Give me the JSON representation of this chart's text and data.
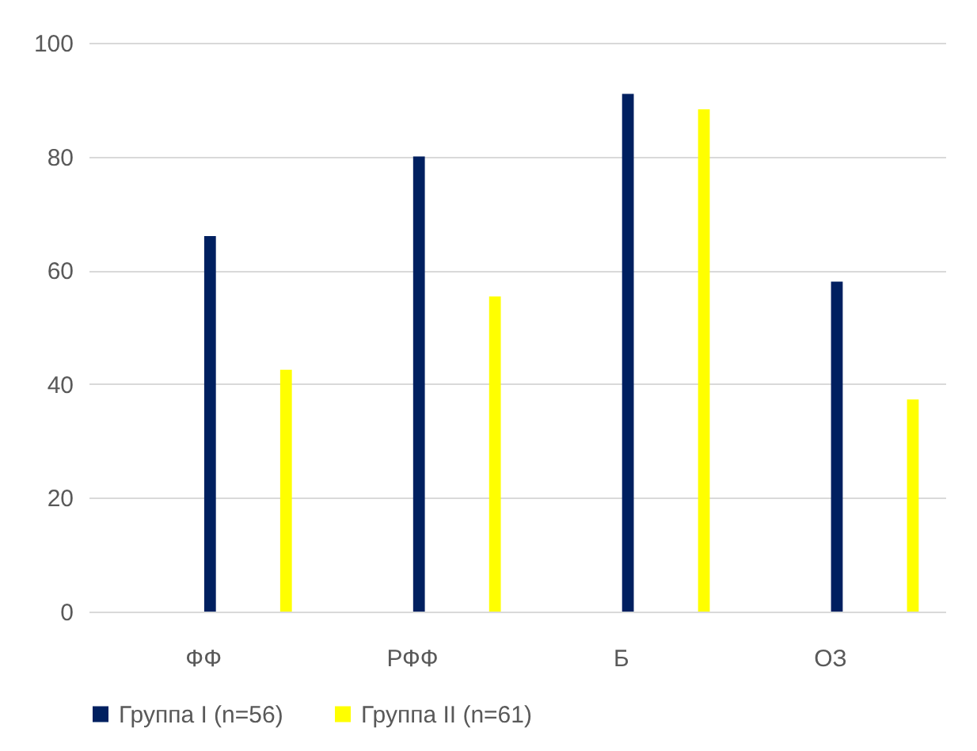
{
  "chart_data": {
    "type": "bar",
    "categories": [
      "ФФ",
      "РФФ",
      "Б",
      "ОЗ"
    ],
    "series": [
      {
        "name": "Группа I (n=56)",
        "color": "#002060",
        "values": [
          66,
          80,
          91,
          58
        ]
      },
      {
        "name": "Группа II (n=61)",
        "color": "#ffff00",
        "values": [
          42.5,
          55.4,
          88.3,
          37.3
        ]
      }
    ],
    "ylim": [
      0,
      100
    ],
    "yticks": [
      0,
      20,
      40,
      60,
      80,
      100
    ],
    "grid": "y",
    "legend": "bottom"
  }
}
